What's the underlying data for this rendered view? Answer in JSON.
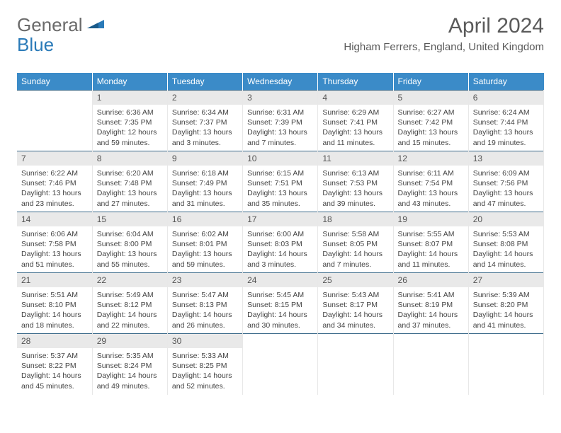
{
  "logo": {
    "part1": "General",
    "part2": "Blue"
  },
  "title": "April 2024",
  "location": "Higham Ferrers, England, United Kingdom",
  "header_bg": "#3b8bc8",
  "daynum_bg": "#e9e9e9",
  "weekdays": [
    "Sunday",
    "Monday",
    "Tuesday",
    "Wednesday",
    "Thursday",
    "Friday",
    "Saturday"
  ],
  "weeks": [
    [
      null,
      {
        "n": "1",
        "sr": "Sunrise: 6:36 AM",
        "ss": "Sunset: 7:35 PM",
        "dl": "Daylight: 12 hours and 59 minutes."
      },
      {
        "n": "2",
        "sr": "Sunrise: 6:34 AM",
        "ss": "Sunset: 7:37 PM",
        "dl": "Daylight: 13 hours and 3 minutes."
      },
      {
        "n": "3",
        "sr": "Sunrise: 6:31 AM",
        "ss": "Sunset: 7:39 PM",
        "dl": "Daylight: 13 hours and 7 minutes."
      },
      {
        "n": "4",
        "sr": "Sunrise: 6:29 AM",
        "ss": "Sunset: 7:41 PM",
        "dl": "Daylight: 13 hours and 11 minutes."
      },
      {
        "n": "5",
        "sr": "Sunrise: 6:27 AM",
        "ss": "Sunset: 7:42 PM",
        "dl": "Daylight: 13 hours and 15 minutes."
      },
      {
        "n": "6",
        "sr": "Sunrise: 6:24 AM",
        "ss": "Sunset: 7:44 PM",
        "dl": "Daylight: 13 hours and 19 minutes."
      }
    ],
    [
      {
        "n": "7",
        "sr": "Sunrise: 6:22 AM",
        "ss": "Sunset: 7:46 PM",
        "dl": "Daylight: 13 hours and 23 minutes."
      },
      {
        "n": "8",
        "sr": "Sunrise: 6:20 AM",
        "ss": "Sunset: 7:48 PM",
        "dl": "Daylight: 13 hours and 27 minutes."
      },
      {
        "n": "9",
        "sr": "Sunrise: 6:18 AM",
        "ss": "Sunset: 7:49 PM",
        "dl": "Daylight: 13 hours and 31 minutes."
      },
      {
        "n": "10",
        "sr": "Sunrise: 6:15 AM",
        "ss": "Sunset: 7:51 PM",
        "dl": "Daylight: 13 hours and 35 minutes."
      },
      {
        "n": "11",
        "sr": "Sunrise: 6:13 AM",
        "ss": "Sunset: 7:53 PM",
        "dl": "Daylight: 13 hours and 39 minutes."
      },
      {
        "n": "12",
        "sr": "Sunrise: 6:11 AM",
        "ss": "Sunset: 7:54 PM",
        "dl": "Daylight: 13 hours and 43 minutes."
      },
      {
        "n": "13",
        "sr": "Sunrise: 6:09 AM",
        "ss": "Sunset: 7:56 PM",
        "dl": "Daylight: 13 hours and 47 minutes."
      }
    ],
    [
      {
        "n": "14",
        "sr": "Sunrise: 6:06 AM",
        "ss": "Sunset: 7:58 PM",
        "dl": "Daylight: 13 hours and 51 minutes."
      },
      {
        "n": "15",
        "sr": "Sunrise: 6:04 AM",
        "ss": "Sunset: 8:00 PM",
        "dl": "Daylight: 13 hours and 55 minutes."
      },
      {
        "n": "16",
        "sr": "Sunrise: 6:02 AM",
        "ss": "Sunset: 8:01 PM",
        "dl": "Daylight: 13 hours and 59 minutes."
      },
      {
        "n": "17",
        "sr": "Sunrise: 6:00 AM",
        "ss": "Sunset: 8:03 PM",
        "dl": "Daylight: 14 hours and 3 minutes."
      },
      {
        "n": "18",
        "sr": "Sunrise: 5:58 AM",
        "ss": "Sunset: 8:05 PM",
        "dl": "Daylight: 14 hours and 7 minutes."
      },
      {
        "n": "19",
        "sr": "Sunrise: 5:55 AM",
        "ss": "Sunset: 8:07 PM",
        "dl": "Daylight: 14 hours and 11 minutes."
      },
      {
        "n": "20",
        "sr": "Sunrise: 5:53 AM",
        "ss": "Sunset: 8:08 PM",
        "dl": "Daylight: 14 hours and 14 minutes."
      }
    ],
    [
      {
        "n": "21",
        "sr": "Sunrise: 5:51 AM",
        "ss": "Sunset: 8:10 PM",
        "dl": "Daylight: 14 hours and 18 minutes."
      },
      {
        "n": "22",
        "sr": "Sunrise: 5:49 AM",
        "ss": "Sunset: 8:12 PM",
        "dl": "Daylight: 14 hours and 22 minutes."
      },
      {
        "n": "23",
        "sr": "Sunrise: 5:47 AM",
        "ss": "Sunset: 8:13 PM",
        "dl": "Daylight: 14 hours and 26 minutes."
      },
      {
        "n": "24",
        "sr": "Sunrise: 5:45 AM",
        "ss": "Sunset: 8:15 PM",
        "dl": "Daylight: 14 hours and 30 minutes."
      },
      {
        "n": "25",
        "sr": "Sunrise: 5:43 AM",
        "ss": "Sunset: 8:17 PM",
        "dl": "Daylight: 14 hours and 34 minutes."
      },
      {
        "n": "26",
        "sr": "Sunrise: 5:41 AM",
        "ss": "Sunset: 8:19 PM",
        "dl": "Daylight: 14 hours and 37 minutes."
      },
      {
        "n": "27",
        "sr": "Sunrise: 5:39 AM",
        "ss": "Sunset: 8:20 PM",
        "dl": "Daylight: 14 hours and 41 minutes."
      }
    ],
    [
      {
        "n": "28",
        "sr": "Sunrise: 5:37 AM",
        "ss": "Sunset: 8:22 PM",
        "dl": "Daylight: 14 hours and 45 minutes."
      },
      {
        "n": "29",
        "sr": "Sunrise: 5:35 AM",
        "ss": "Sunset: 8:24 PM",
        "dl": "Daylight: 14 hours and 49 minutes."
      },
      {
        "n": "30",
        "sr": "Sunrise: 5:33 AM",
        "ss": "Sunset: 8:25 PM",
        "dl": "Daylight: 14 hours and 52 minutes."
      },
      null,
      null,
      null,
      null
    ]
  ]
}
